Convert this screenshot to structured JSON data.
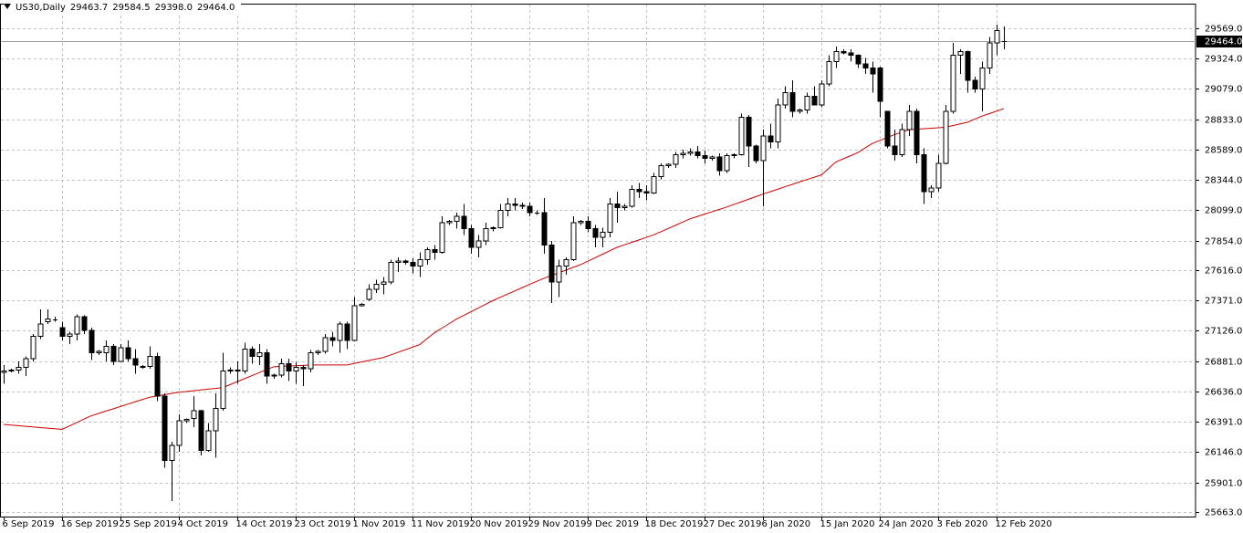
{
  "chart_data": {
    "type": "candlestick",
    "title": "US30,Daily",
    "header_values": [
      29463.7,
      29584.5,
      {
        "value": 29398,
        "label": "29398.0"
      },
      {
        "value": 29464,
        "label": "29464.0"
      }
    ],
    "categories": [
      "6 Sep 2019",
      null,
      null,
      null,
      null,
      null,
      null,
      null,
      "16 Sep 2019",
      null,
      null,
      null,
      null,
      null,
      null,
      null,
      "25 Sep 2019",
      null,
      null,
      null,
      null,
      null,
      null,
      null,
      "4 Oct 2019",
      null,
      null,
      null,
      null,
      null,
      null,
      null,
      "14 Oct 2019",
      null,
      null,
      null,
      null,
      null,
      null,
      null,
      "23 Oct 2019",
      null,
      null,
      null,
      null,
      null,
      null,
      null,
      "1 Nov 2019",
      null,
      null,
      null,
      null,
      null,
      null,
      null,
      "11 Nov 2019",
      null,
      null,
      null,
      null,
      null,
      null,
      null,
      "20 Nov 2019",
      null,
      null,
      null,
      null,
      null,
      null,
      null,
      "29 Nov 2019",
      null,
      null,
      null,
      null,
      null,
      null,
      null,
      "9 Dec 2019",
      null,
      null,
      null,
      null,
      null,
      null,
      null,
      "18 Dec 2019",
      null,
      null,
      null,
      null,
      null,
      null,
      null,
      "27 Dec 2019",
      null,
      null,
      null,
      null,
      null,
      null,
      null,
      "6 Jan 2020",
      null,
      null,
      null,
      null,
      null,
      null,
      null,
      "15 Jan 2020",
      null,
      null,
      null,
      null,
      null,
      null,
      null,
      "24 Jan 2020",
      null,
      null,
      null,
      null,
      null,
      null,
      null,
      "3 Feb 2020",
      null,
      null,
      null,
      null,
      null,
      null,
      null,
      "12 Feb 2020",
      null
    ],
    "ohlc": [
      [
        26790,
        26850,
        26700,
        26800
      ],
      [
        26800,
        26820,
        26790,
        26810
      ],
      [
        26810,
        26880,
        26780,
        26830
      ],
      [
        26830,
        26920,
        26760,
        26900
      ],
      [
        26900,
        27100,
        26880,
        27080
      ],
      [
        27080,
        27300,
        27060,
        27180
      ],
      [
        27200,
        27300,
        27180,
        27220
      ],
      [
        27220,
        27240,
        27200,
        27220
      ],
      [
        27150,
        27200,
        27050,
        27080
      ],
      [
        27080,
        27120,
        27020,
        27100
      ],
      [
        27100,
        27260,
        27050,
        27240
      ],
      [
        27240,
        27250,
        27100,
        27130
      ],
      [
        27130,
        27150,
        26890,
        26950
      ],
      [
        26950,
        26970,
        26930,
        26960
      ],
      [
        26950,
        27050,
        26880,
        27000
      ],
      [
        27000,
        27020,
        26850,
        26880
      ],
      [
        26880,
        27020,
        26880,
        26990
      ],
      [
        26990,
        27050,
        26880,
        26900
      ],
      [
        26900,
        26980,
        26780,
        26850
      ],
      [
        26830,
        26850,
        26820,
        26840
      ],
      [
        26840,
        27000,
        26820,
        26920
      ],
      [
        26920,
        26950,
        26560,
        26600
      ],
      [
        26600,
        26620,
        26020,
        26080
      ],
      [
        26080,
        26230,
        25750,
        26200
      ],
      [
        26200,
        26450,
        26150,
        26400
      ],
      [
        26400,
        26420,
        26380,
        26410
      ],
      [
        26420,
        26600,
        26350,
        26480
      ],
      [
        26480,
        26490,
        26120,
        26160
      ],
      [
        26160,
        26380,
        26150,
        26320
      ],
      [
        26320,
        26620,
        26100,
        26500
      ],
      [
        26500,
        26950,
        26480,
        26800
      ],
      [
        26800,
        26830,
        26780,
        26810
      ],
      [
        26810,
        26880,
        26700,
        26800
      ],
      [
        26800,
        27030,
        26780,
        26980
      ],
      [
        26980,
        27000,
        26860,
        26920
      ],
      [
        26920,
        27020,
        26850,
        26950
      ],
      [
        26950,
        26980,
        26700,
        26760
      ],
      [
        26760,
        26780,
        26740,
        26770
      ],
      [
        26770,
        26900,
        26750,
        26860
      ],
      [
        26860,
        26900,
        26720,
        26800
      ],
      [
        26800,
        26870,
        26700,
        26830
      ],
      [
        26830,
        26850,
        26680,
        26820
      ],
      [
        26820,
        26970,
        26790,
        26950
      ],
      [
        26950,
        26970,
        26930,
        26960
      ],
      [
        26960,
        27100,
        26940,
        27070
      ],
      [
        27070,
        27120,
        27000,
        27050
      ],
      [
        27050,
        27200,
        26950,
        27180
      ],
      [
        27180,
        27200,
        26980,
        27050
      ],
      [
        27050,
        27400,
        27040,
        27330
      ],
      [
        27330,
        27350,
        27320,
        27340
      ],
      [
        27380,
        27500,
        27370,
        27460
      ],
      [
        27460,
        27540,
        27430,
        27500
      ],
      [
        27500,
        27560,
        27420,
        27520
      ],
      [
        27520,
        27700,
        27500,
        27680
      ],
      [
        27680,
        27720,
        27600,
        27690
      ],
      [
        27690,
        27700,
        27660,
        27680
      ],
      [
        27680,
        27710,
        27590,
        27650
      ],
      [
        27650,
        27760,
        27560,
        27700
      ],
      [
        27700,
        27800,
        27660,
        27780
      ],
      [
        27780,
        27820,
        27700,
        27760
      ],
      [
        27760,
        28050,
        27750,
        28000
      ],
      [
        28000,
        28020,
        27980,
        28010
      ],
      [
        28010,
        28080,
        27950,
        28050
      ],
      [
        28050,
        28150,
        27900,
        27950
      ],
      [
        27950,
        27980,
        27750,
        27800
      ],
      [
        27800,
        27900,
        27720,
        27850
      ],
      [
        27850,
        28000,
        27820,
        27950
      ],
      [
        27950,
        27970,
        27930,
        27960
      ],
      [
        27960,
        28150,
        27950,
        28100
      ],
      [
        28100,
        28200,
        28050,
        28150
      ],
      [
        28150,
        28200,
        28100,
        28140
      ],
      [
        28140,
        28160,
        28110,
        28130
      ],
      [
        28130,
        28160,
        28050,
        28080
      ],
      [
        28080,
        28100,
        28060,
        28080
      ],
      [
        28080,
        28200,
        27750,
        27820
      ],
      [
        27820,
        27850,
        27350,
        27520
      ],
      [
        27520,
        27700,
        27400,
        27650
      ],
      [
        27650,
        27720,
        27580,
        27700
      ],
      [
        27700,
        28050,
        27690,
        28000
      ],
      [
        28000,
        28020,
        27980,
        28010
      ],
      [
        28010,
        28050,
        27920,
        27950
      ],
      [
        27950,
        27980,
        27800,
        27880
      ],
      [
        27880,
        27960,
        27800,
        27920
      ],
      [
        27920,
        28200,
        27880,
        28150
      ],
      [
        28150,
        28250,
        28000,
        28120
      ],
      [
        28120,
        28150,
        28100,
        28130
      ],
      [
        28130,
        28300,
        28120,
        28270
      ],
      [
        28270,
        28320,
        28200,
        28250
      ],
      [
        28250,
        28300,
        28180,
        28240
      ],
      [
        28240,
        28400,
        28230,
        28370
      ],
      [
        28370,
        28480,
        28350,
        28460
      ],
      [
        28460,
        28480,
        28440,
        28470
      ],
      [
        28470,
        28570,
        28440,
        28550
      ],
      [
        28550,
        28590,
        28520,
        28560
      ],
      [
        28560,
        28600,
        28540,
        28570
      ],
      [
        28570,
        28620,
        28520,
        28540
      ],
      [
        28540,
        28580,
        28480,
        28520
      ],
      [
        28520,
        28540,
        28500,
        28530
      ],
      [
        28530,
        28560,
        28380,
        28420
      ],
      [
        28420,
        28560,
        28400,
        28540
      ],
      [
        28540,
        28560,
        28520,
        28550
      ],
      [
        28550,
        28880,
        28540,
        28850
      ],
      [
        28850,
        28870,
        28450,
        28620
      ],
      [
        28620,
        28630,
        28480,
        28500
      ],
      [
        28500,
        28750,
        28130,
        28700
      ],
      [
        28700,
        28800,
        28600,
        28650
      ],
      [
        28650,
        29000,
        28600,
        28950
      ],
      [
        28950,
        29100,
        28920,
        29050
      ],
      [
        29050,
        29150,
        28850,
        28900
      ],
      [
        28900,
        28920,
        28880,
        28910
      ],
      [
        28910,
        29050,
        28880,
        29020
      ],
      [
        29020,
        29100,
        28950,
        28950
      ],
      [
        28950,
        29150,
        28930,
        29120
      ],
      [
        29120,
        29350,
        29100,
        29300
      ],
      [
        29300,
        29420,
        29250,
        29380
      ],
      [
        29380,
        29400,
        29360,
        29370
      ],
      [
        29370,
        29400,
        29300,
        29350
      ],
      [
        29350,
        29360,
        29250,
        29280
      ],
      [
        29280,
        29330,
        29200,
        29250
      ],
      [
        29250,
        29300,
        29050,
        29200
      ],
      [
        29250,
        29260,
        28850,
        28980
      ],
      [
        28900,
        28900,
        28600,
        28620
      ],
      [
        28620,
        28750,
        28500,
        28550
      ],
      [
        28550,
        28800,
        28530,
        28750
      ],
      [
        28750,
        28950,
        28700,
        28900
      ],
      [
        28900,
        28920,
        28480,
        28550
      ],
      [
        28550,
        28600,
        28150,
        28250
      ],
      [
        28250,
        28300,
        28200,
        28280
      ],
      [
        28280,
        28550,
        28250,
        28480
      ],
      [
        28480,
        28950,
        28470,
        28900
      ],
      [
        28900,
        29450,
        28880,
        29350
      ],
      [
        29350,
        29400,
        29200,
        29380
      ],
      [
        29380,
        29390,
        29050,
        29150
      ],
      [
        29150,
        29180,
        29050,
        29080
      ],
      [
        29080,
        29300,
        28900,
        29250
      ],
      [
        29250,
        29500,
        29200,
        29450
      ],
      [
        29450,
        29600,
        29350,
        29550
      ],
      [
        29463.7,
        29584.5,
        29398,
        29464
      ]
    ],
    "up_color": "#ffffff",
    "down_color": "#000000",
    "ma": {
      "color": "#cc0000",
      "values": [
        26370,
        26365,
        26360,
        26355,
        26350,
        26345,
        26340,
        26335,
        26330,
        26358,
        26385,
        26413,
        26440,
        26459,
        26478,
        26496,
        26515,
        26534,
        26553,
        26571,
        26590,
        26600,
        26610,
        26620,
        26630,
        26636,
        26642,
        26649,
        26655,
        26661,
        26667,
        26691,
        26716,
        26740,
        26764,
        26788,
        26812,
        26836,
        26839,
        26842,
        26844,
        26847,
        26850,
        26850,
        26850,
        26850,
        26850,
        26850,
        26862,
        26874,
        26886,
        26898,
        26910,
        26931,
        26952,
        26973,
        26994,
        27015,
        27063,
        27110,
        27147,
        27183,
        27220,
        27250,
        27280,
        27310,
        27340,
        27370,
        27396,
        27422,
        27448,
        27474,
        27500,
        27525,
        27550,
        27572,
        27594,
        27616,
        27638,
        27660,
        27688,
        27716,
        27744,
        27772,
        27800,
        27820,
        27840,
        27860,
        27880,
        27900,
        27926,
        27952,
        27978,
        28004,
        28030,
        28049,
        28068,
        28087,
        28106,
        28125,
        28146,
        28167,
        28188,
        28209,
        28230,
        28250,
        28269,
        28289,
        28308,
        28328,
        28347,
        28366,
        28385,
        28438,
        28490,
        28515,
        28540,
        28565,
        28603,
        28640,
        28663,
        28687,
        28710,
        28730,
        28750,
        28754,
        28758,
        28762,
        28766,
        28770,
        28783,
        28797,
        28810,
        28835,
        28860,
        28880,
        28900,
        28920
      ]
    },
    "ylim": [
      25626,
      29768
    ],
    "yticks": [
      {
        "value": 25663,
        "label": "25663.0"
      },
      {
        "value": 25901,
        "label": "25901.0"
      },
      {
        "value": 26146,
        "label": "26146.0"
      },
      {
        "value": 26391,
        "label": "26391.0"
      },
      {
        "value": 26636,
        "label": "26636.0"
      },
      {
        "value": 26881,
        "label": "26881.0"
      },
      {
        "value": 27126,
        "label": "27126.0"
      },
      {
        "value": 27371,
        "label": "27371.0"
      },
      {
        "value": 27616,
        "label": "27616.0"
      },
      {
        "value": 27854,
        "label": "27854.0"
      },
      {
        "value": 28099,
        "label": "28099.0"
      },
      {
        "value": 28344,
        "label": "28344.0"
      },
      {
        "value": 28589,
        "label": "28589.0"
      },
      {
        "value": 28833,
        "label": "28833.0"
      },
      {
        "value": 29079,
        "label": "29079.0"
      },
      {
        "value": 29324,
        "label": "29324.0"
      },
      {
        "value": 29569,
        "label": "29569.0"
      }
    ],
    "current_price": {
      "value": 29464,
      "label": "29464.0"
    },
    "grid": true
  }
}
